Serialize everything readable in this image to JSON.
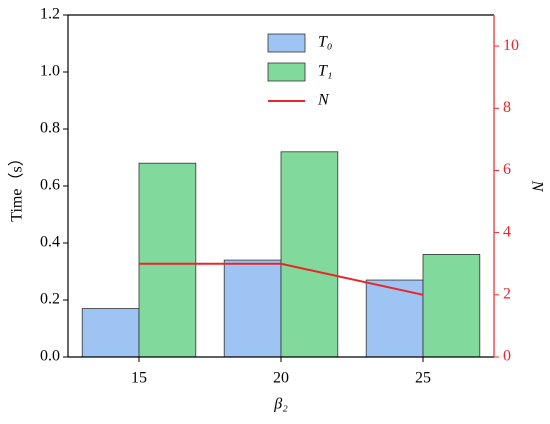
{
  "chart_data": {
    "type": "bar",
    "xlabel": "β₂",
    "ylabel": "Time（s）",
    "y2label": "N",
    "categories": [
      "15",
      "20",
      "25"
    ],
    "series": [
      {
        "name": "T₀",
        "color": "#9ec4f4",
        "values": [
          0.17,
          0.34,
          0.27
        ]
      },
      {
        "name": "T₁",
        "color": "#82d99c",
        "values": [
          0.68,
          0.72,
          0.36
        ]
      },
      {
        "name": "N",
        "type": "line",
        "axis": "y2",
        "color": "#e8262a",
        "values": [
          3,
          3,
          2
        ]
      }
    ],
    "ylim": [
      0,
      1.2
    ],
    "yticks": [
      {
        "value": 0,
        "label": "0.0"
      },
      0.2,
      0.4,
      0.6,
      0.8,
      {
        "value": 1,
        "label": "1.0"
      },
      1.2
    ],
    "y2lim": [
      0,
      11
    ],
    "y2ticks": [
      0,
      2,
      4,
      6,
      8,
      10
    ],
    "y2color": "#e8262a",
    "legend": "top"
  }
}
